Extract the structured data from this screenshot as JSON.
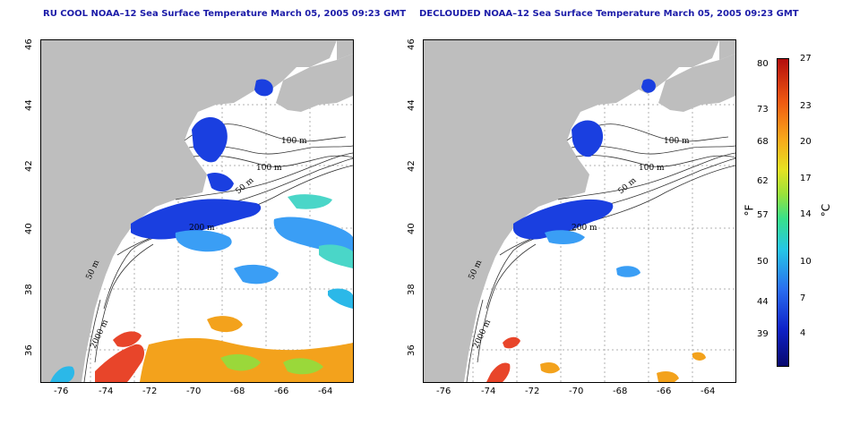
{
  "titles": {
    "left": "RU COOL NOAA–12 Sea Surface Temperature March 05, 2005 09:23 GMT",
    "right": "DECLOUDED NOAA–12 Sea Surface Temperature March 05, 2005 09:23 GMT"
  },
  "axes": {
    "x_ticks": [
      "-76",
      "-74",
      "-72",
      "-70",
      "-68",
      "-66",
      "-64"
    ],
    "y_ticks": [
      "46",
      "44",
      "42",
      "40",
      "38",
      "36"
    ]
  },
  "contour_labels": [
    "100 m",
    "100 m",
    "50 m",
    "50 m",
    "200 m",
    "2000 m"
  ],
  "colorbar": {
    "fahrenheit_ticks": [
      "80",
      "73",
      "68",
      "62",
      "57",
      "50",
      "44",
      "39"
    ],
    "celsius_ticks": [
      "27",
      "23",
      "20",
      "17",
      "14",
      "10",
      "7",
      "4"
    ],
    "fahrenheit_unit": "°F",
    "celsius_unit": "°C"
  },
  "colors": {
    "land": "#bebebe",
    "ocean": "#ffffff",
    "title": "#1b1ba8",
    "cold": "#1030d8",
    "warm": "#e03010"
  }
}
